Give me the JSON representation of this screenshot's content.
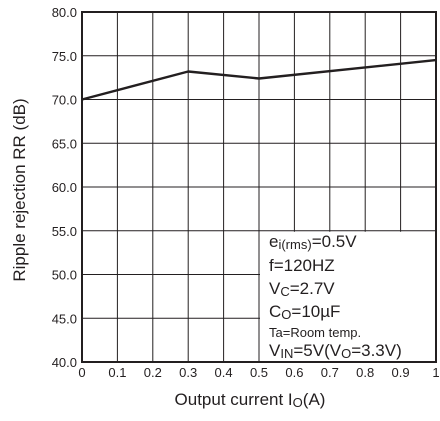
{
  "chart_data": {
    "type": "line",
    "xlabel": {
      "main": "Output current I",
      "sub": "O",
      "unit": "(A)"
    },
    "ylabel": "Ripple rejection RR (dB)",
    "xlim": [
      0,
      1
    ],
    "ylim": [
      40,
      80
    ],
    "x_ticks": [
      "0",
      "0.1",
      "0.2",
      "0.3",
      "0.4",
      "0.5",
      "0.6",
      "0.7",
      "0.8",
      "0.9",
      "1"
    ],
    "y_ticks": [
      "40.0",
      "45.0",
      "50.0",
      "55.0",
      "60.0",
      "65.0",
      "70.0",
      "75.0",
      "80.0"
    ],
    "grid": true,
    "series": [
      {
        "x": [
          0,
          0.3,
          0.5,
          1.0
        ],
        "y": [
          70.0,
          73.2,
          72.4,
          74.5
        ]
      }
    ],
    "conditions": [
      {
        "parts": [
          [
            "e",
            ""
          ],
          [
            "i(rms)",
            "sub"
          ],
          [
            "=0.5V",
            ""
          ]
        ]
      },
      {
        "parts": [
          [
            "f=120HZ",
            ""
          ]
        ]
      },
      {
        "parts": [
          [
            "V",
            ""
          ],
          [
            "C",
            "sub"
          ],
          [
            "=2.7V",
            ""
          ]
        ]
      },
      {
        "parts": [
          [
            "C",
            ""
          ],
          [
            "O",
            "sub"
          ],
          [
            "=10µF",
            ""
          ]
        ]
      },
      {
        "parts": [
          [
            "T",
            "sub"
          ],
          [
            "a",
            "sub"
          ],
          [
            "=Room temp.",
            "sub"
          ]
        ]
      },
      {
        "parts": [
          [
            "V",
            ""
          ],
          [
            "IN",
            "sub"
          ],
          [
            "=5V(V",
            ""
          ],
          [
            "O",
            "sub"
          ],
          [
            "=3.3V)",
            ""
          ]
        ]
      }
    ],
    "colors": {
      "line": "#231f20",
      "grid": "#231f20",
      "background": "#ffffff"
    }
  }
}
